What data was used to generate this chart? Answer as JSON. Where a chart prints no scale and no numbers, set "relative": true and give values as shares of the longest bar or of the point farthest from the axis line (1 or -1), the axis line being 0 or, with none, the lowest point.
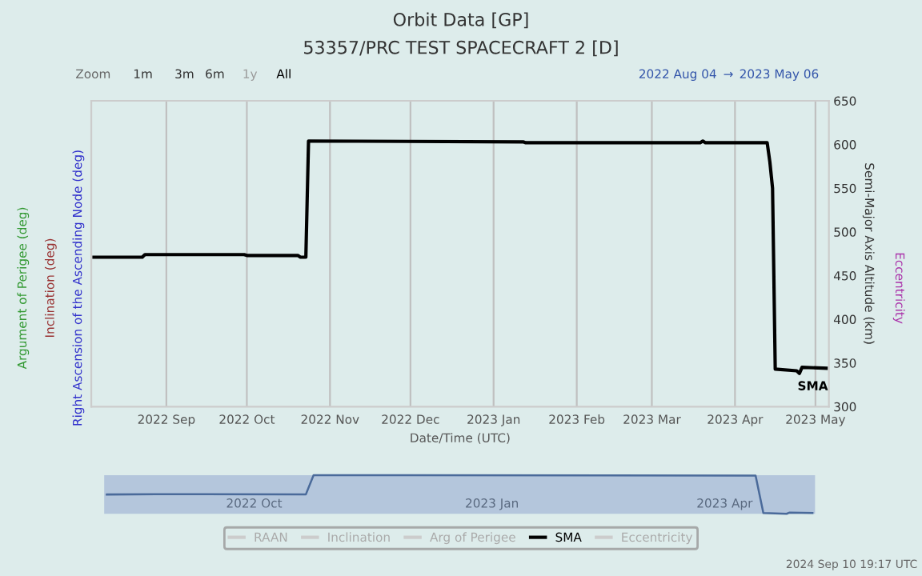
{
  "chart_data": [
    {
      "type": "line",
      "title": "Orbit Data [GP]",
      "subtitle": "53357/PRC TEST SPACECRAFT 2 [D]",
      "xlabel": "Date/Time (UTC)",
      "ylabel": "Semi-Major Axis Altitude (km)",
      "xlim": [
        "2022-08-04",
        "2023-05-06"
      ],
      "xticks": [
        {
          "value": "2022-09-01",
          "label": "2022 Sep"
        },
        {
          "value": "2022-10-01",
          "label": "2022 Oct"
        },
        {
          "value": "2022-11-01",
          "label": "2022 Nov"
        },
        {
          "value": "2022-12-01",
          "label": "2022 Dec"
        },
        {
          "value": "2023-01-01",
          "label": "2023 Jan"
        },
        {
          "value": "2023-02-01",
          "label": "2023 Feb"
        },
        {
          "value": "2023-03-01",
          "label": "2023 Mar"
        },
        {
          "value": "2023-04-01",
          "label": "2023 Apr"
        },
        {
          "value": "2023-05-01",
          "label": "2023 May"
        }
      ],
      "ylim": [
        300,
        650
      ],
      "yticks": [
        300,
        350,
        400,
        450,
        500,
        550,
        600,
        650
      ],
      "grid": "x",
      "legend": "bottom",
      "series": [
        {
          "name": "RAAN",
          "color": "#cccccc"
        },
        {
          "name": "Inclination",
          "color": "#cccccc"
        },
        {
          "name": "Arg of Perigee",
          "color": "#cccccc"
        },
        {
          "name": "SMA",
          "color": "#000000",
          "x": [
            "2022-08-05",
            "2022-08-23",
            "2022-08-24",
            "2022-09-30",
            "2022-10-01",
            "2022-10-20",
            "2022-10-21",
            "2022-10-23",
            "2022-10-24",
            "2023-01-12",
            "2023-01-13",
            "2023-03-19",
            "2023-03-20",
            "2023-03-21",
            "2023-04-13",
            "2023-04-14",
            "2023-04-15",
            "2023-04-16",
            "2023-04-24",
            "2023-04-25",
            "2023-04-26",
            "2023-05-05"
          ],
          "values": [
            471,
            471,
            474,
            474,
            473,
            473,
            471,
            471,
            604,
            603,
            602,
            602,
            604,
            602,
            602,
            580,
            550,
            343,
            341,
            338,
            345,
            344
          ]
        },
        {
          "name": "Eccentricity",
          "color": "#cccccc"
        }
      ],
      "annotations": [
        "Right Ascension of the Ascending Node (deg)",
        "Inclination (deg)",
        "Argument of Perigee (deg)",
        "Eccentricity",
        {
          "text": "SMA",
          "x": "2023-04-30",
          "y": 338
        },
        "Zoom",
        "1m",
        "3m",
        "6m",
        "1y",
        "All",
        "2022 Aug 04",
        "→",
        "2023 May 06",
        "2024 Sep 10 19:17 UTC"
      ]
    },
    {
      "type": "line",
      "relative": true,
      "xlim": [
        "2022-08-04",
        "2023-05-06"
      ],
      "xticks": [
        {
          "value": "2022-10-01",
          "label": "2022 Oct"
        },
        {
          "value": "2023-01-01",
          "label": "2023 Jan"
        },
        {
          "value": "2023-04-01",
          "label": "2023 Apr"
        }
      ],
      "tick_labels": "x",
      "series": [
        {
          "color": "#4a6a9a",
          "x": [
            "2022-08-05",
            "2022-08-24",
            "2022-10-21",
            "2022-10-24",
            "2023-04-13",
            "2023-04-16",
            "2023-04-25",
            "2023-04-26",
            "2023-05-05"
          ],
          "values": [
            0.5,
            0.51,
            0.5,
            1,
            0.99,
            0.02,
            0,
            0.03,
            0.02
          ]
        }
      ]
    }
  ]
}
